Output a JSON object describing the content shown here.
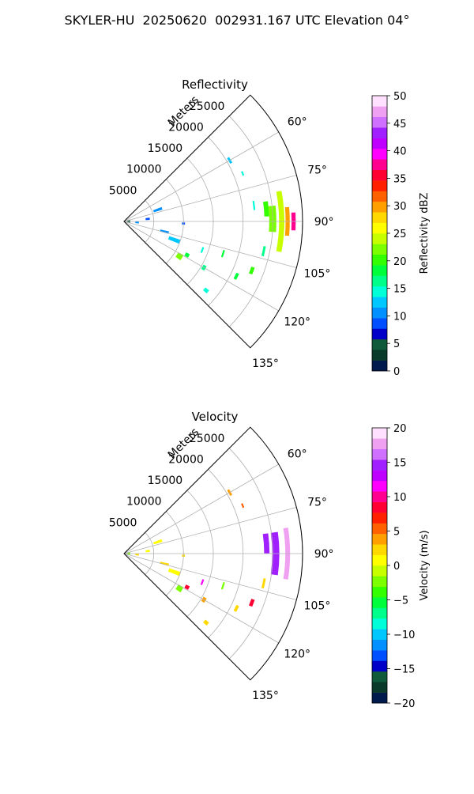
{
  "figure": {
    "title": "SKYLER-HU  20250620  002931.167 UTC Elevation 04°"
  },
  "chart_data": [
    {
      "type": "polar-sector",
      "title": "Reflectivity",
      "radial_label": "Meters",
      "radial_ticks": [
        5000,
        10000,
        15000,
        20000,
        25000
      ],
      "rmax": 30000,
      "angle_ticks": [
        "60°",
        "75°",
        "90°",
        "105°",
        "120°",
        "135°"
      ],
      "angle_range_deg": [
        45,
        135
      ],
      "colorbar": {
        "label": "Reflectivity dBZ",
        "min": 0,
        "max": 50,
        "ticks": [
          "0",
          "5",
          "10",
          "15",
          "20",
          "25",
          "30",
          "35",
          "40",
          "45",
          "50"
        ],
        "colors": [
          "#001a4d",
          "#0a3a2a",
          "#0e5a3a",
          "#0000c8",
          "#0050ff",
          "#0090ff",
          "#00c8ff",
          "#00ffd8",
          "#00ff8a",
          "#00ff3a",
          "#33ff00",
          "#7cff00",
          "#c8ff00",
          "#ffff00",
          "#ffd800",
          "#ffa000",
          "#ff6000",
          "#ff2000",
          "#ff0033",
          "#ff0090",
          "#ff00ff",
          "#c000ff",
          "#a020ff",
          "#d070ff",
          "#f0a0f0",
          "#ffe0ff"
        ]
      },
      "echoes": [
        {
          "r": 20500,
          "a": 60,
          "dr": 400,
          "da": 3,
          "v": 12
        },
        {
          "r": 21500,
          "a": 68,
          "dr": 300,
          "da": 2,
          "v": 14
        },
        {
          "r": 22000,
          "a": 83,
          "dr": 300,
          "da": 4,
          "v": 15
        },
        {
          "r": 24000,
          "a": 85,
          "dr": 800,
          "da": 6,
          "v": 20
        },
        {
          "r": 25000,
          "a": 89,
          "dr": 1200,
          "da": 10,
          "v": 22
        },
        {
          "r": 26500,
          "a": 90,
          "dr": 900,
          "da": 22,
          "v": 24
        },
        {
          "r": 27500,
          "a": 90,
          "dr": 700,
          "da": 10,
          "v": 30
        },
        {
          "r": 28500,
          "a": 90,
          "dr": 700,
          "da": 6,
          "v": 38
        },
        {
          "r": 24000,
          "a": 102,
          "dr": 400,
          "da": 4,
          "v": 16
        },
        {
          "r": 23000,
          "a": 111,
          "dr": 600,
          "da": 3,
          "v": 20
        },
        {
          "r": 21000,
          "a": 116,
          "dr": 500,
          "da": 3,
          "v": 18
        },
        {
          "r": 17500,
          "a": 108,
          "dr": 300,
          "da": 4,
          "v": 18
        },
        {
          "r": 14000,
          "a": 110,
          "dr": 300,
          "da": 4,
          "v": 14
        },
        {
          "r": 11000,
          "a": 122,
          "dr": 1000,
          "da": 5,
          "v": 22
        },
        {
          "r": 12000,
          "a": 118,
          "dr": 700,
          "da": 3,
          "v": 18
        },
        {
          "r": 15500,
          "a": 120,
          "dr": 600,
          "da": 3,
          "v": 16
        },
        {
          "r": 9000,
          "a": 110,
          "dr": 2000,
          "da": 4,
          "v": 12
        },
        {
          "r": 7000,
          "a": 104,
          "dr": 1500,
          "da": 3,
          "v": 10
        },
        {
          "r": 6000,
          "a": 71,
          "dr": 1500,
          "da": 4,
          "v": 10
        },
        {
          "r": 4000,
          "a": 84,
          "dr": 700,
          "da": 5,
          "v": 8
        },
        {
          "r": 2200,
          "a": 94,
          "dr": 600,
          "da": 8,
          "v": 10
        },
        {
          "r": 800,
          "a": 88,
          "dr": 500,
          "da": 30,
          "v": 4
        },
        {
          "r": 18000,
          "a": 130,
          "dr": 800,
          "da": 2,
          "v": 14
        },
        {
          "r": 10000,
          "a": 92,
          "dr": 500,
          "da": 2,
          "v": 8
        }
      ]
    },
    {
      "type": "polar-sector",
      "title": "Velocity",
      "radial_label": "Meters",
      "radial_ticks": [
        5000,
        10000,
        15000,
        20000,
        25000
      ],
      "rmax": 30000,
      "angle_ticks": [
        "60°",
        "75°",
        "90°",
        "105°",
        "120°",
        "135°"
      ],
      "angle_range_deg": [
        45,
        135
      ],
      "colorbar": {
        "label": "Velocity (m/s)",
        "min": -20,
        "max": 20,
        "ticks": [
          "−20",
          "−15",
          "−10",
          "−5",
          "0",
          "5",
          "10",
          "15",
          "20"
        ],
        "colors": [
          "#001a4d",
          "#0a3a2a",
          "#0e5a3a",
          "#0000c8",
          "#0050ff",
          "#0090ff",
          "#00c8ff",
          "#00ffd8",
          "#00ff8a",
          "#00ff3a",
          "#33ff00",
          "#7cff00",
          "#c8ff00",
          "#ffff00",
          "#ffd800",
          "#ffa000",
          "#ff6000",
          "#ff2000",
          "#ff0033",
          "#ff0090",
          "#ff00ff",
          "#c000ff",
          "#a020ff",
          "#d070ff",
          "#f0a0f0",
          "#ffe0ff"
        ]
      },
      "echoes": [
        {
          "r": 20500,
          "a": 60,
          "dr": 400,
          "da": 3,
          "v": 4
        },
        {
          "r": 21500,
          "a": 68,
          "dr": 300,
          "da": 2,
          "v": 6
        },
        {
          "r": 24000,
          "a": 86,
          "dr": 900,
          "da": 8,
          "v": 14
        },
        {
          "r": 25500,
          "a": 90,
          "dr": 1200,
          "da": 16,
          "v": 15
        },
        {
          "r": 27500,
          "a": 90,
          "dr": 800,
          "da": 18,
          "v": 17
        },
        {
          "r": 24000,
          "a": 102,
          "dr": 400,
          "da": 4,
          "v": 2
        },
        {
          "r": 23000,
          "a": 111,
          "dr": 600,
          "da": 3,
          "v": 8
        },
        {
          "r": 21000,
          "a": 116,
          "dr": 500,
          "da": 3,
          "v": 2
        },
        {
          "r": 17500,
          "a": 108,
          "dr": 300,
          "da": 4,
          "v": -3
        },
        {
          "r": 14000,
          "a": 110,
          "dr": 300,
          "da": 4,
          "v": 11
        },
        {
          "r": 11000,
          "a": 122,
          "dr": 1000,
          "da": 5,
          "v": -2
        },
        {
          "r": 12000,
          "a": 118,
          "dr": 700,
          "da": 3,
          "v": 8
        },
        {
          "r": 15500,
          "a": 120,
          "dr": 600,
          "da": 3,
          "v": 4
        },
        {
          "r": 9000,
          "a": 110,
          "dr": 2000,
          "da": 4,
          "v": 1
        },
        {
          "r": 7000,
          "a": 104,
          "dr": 1500,
          "da": 3,
          "v": 2
        },
        {
          "r": 6000,
          "a": 71,
          "dr": 1500,
          "da": 4,
          "v": 1
        },
        {
          "r": 4000,
          "a": 84,
          "dr": 700,
          "da": 5,
          "v": 0
        },
        {
          "r": 2200,
          "a": 94,
          "dr": 600,
          "da": 8,
          "v": 2
        },
        {
          "r": 800,
          "a": 88,
          "dr": 500,
          "da": 30,
          "v": -2
        },
        {
          "r": 18000,
          "a": 130,
          "dr": 800,
          "da": 2,
          "v": 3
        },
        {
          "r": 10000,
          "a": 92,
          "dr": 500,
          "da": 2,
          "v": 2
        }
      ]
    }
  ]
}
